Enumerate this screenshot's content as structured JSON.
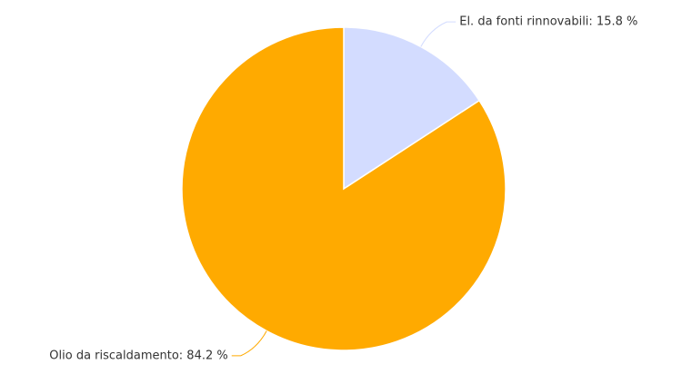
{
  "chart_data": {
    "type": "pie",
    "values": [
      15.8,
      84.2
    ],
    "value_labels": [
      "El. da fonti rinnovabili: 15.8 %",
      "Olio da riscaldamento: 84.2 %"
    ],
    "colors": [
      "#d3dcff",
      "#ffaa00"
    ]
  }
}
